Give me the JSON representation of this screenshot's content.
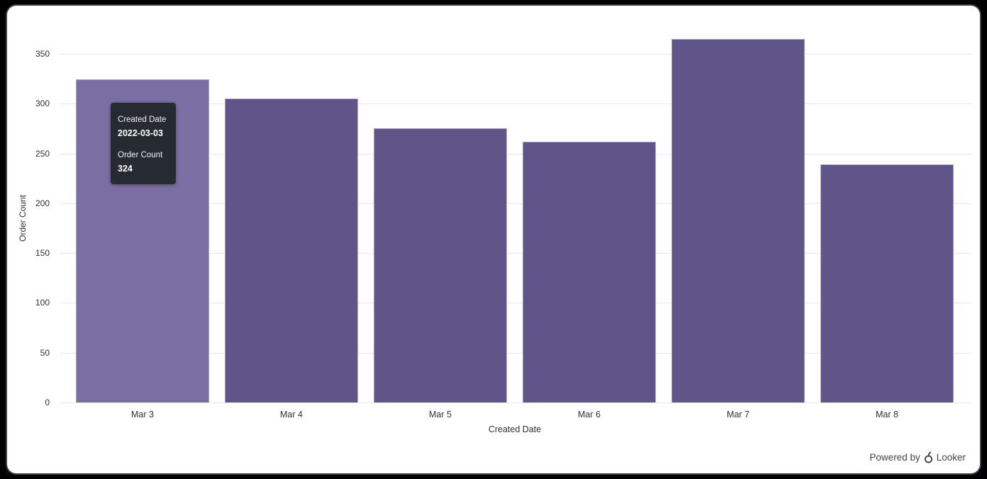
{
  "chart_data": {
    "type": "bar",
    "title": "",
    "categories": [
      "Mar 3",
      "Mar 4",
      "Mar 5",
      "Mar 6",
      "Mar 7",
      "Mar 8"
    ],
    "values": [
      324,
      305,
      275,
      262,
      365,
      239
    ],
    "series_name": "Order Count",
    "xlabel": "Created Date",
    "ylabel": "Order Count",
    "yticks": [
      0,
      50,
      100,
      150,
      200,
      250,
      300,
      350
    ],
    "ylim": [
      0,
      372
    ],
    "grid": "horizontal",
    "legend": "none",
    "hovered_index": 0,
    "colors": {
      "bar": "#5F5588",
      "bar_hover": "#7A6EA3",
      "bar_border": "#ACA3CB",
      "gridline": "#E8E8EC",
      "axis_text": "#2E3134",
      "canvas_bg": "#FFFFFF",
      "page_bg": "#000000"
    }
  },
  "tooltip": {
    "label1": "Created Date",
    "value1": "2022-03-03",
    "label2": "Order Count",
    "value2": "324",
    "bg": "#262B31",
    "text_color": "#FFFFFF"
  },
  "footer": {
    "powered_by": "Powered by",
    "brand": "Looker",
    "text_color": "#3E4549"
  }
}
